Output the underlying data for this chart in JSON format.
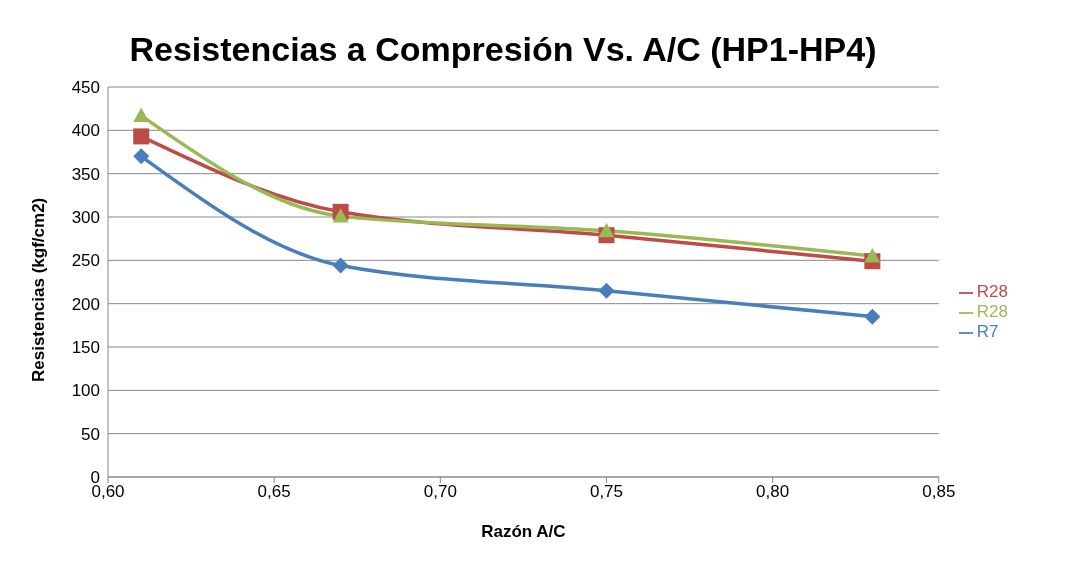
{
  "chart_data": {
    "type": "line",
    "title": "Resistencias a Compresión  Vs. A/C (HP1-HP4)",
    "xlabel": "Razón A/C",
    "ylabel": "Resistencias (kgf/cm2)",
    "x": [
      0.61,
      0.67,
      0.75,
      0.83
    ],
    "series": [
      {
        "name": "R7",
        "color": "#4a7ebb",
        "values": [
          370,
          244,
          215,
          185
        ],
        "marker": "diamond"
      },
      {
        "name": "R28",
        "color": "#be4b48",
        "values": [
          393,
          306,
          279,
          249
        ],
        "marker": "square"
      },
      {
        "name": "R28",
        "color": "#98b954",
        "values": [
          417,
          301,
          284,
          255
        ],
        "marker": "triangle"
      }
    ],
    "xlim": [
      0.6,
      0.85
    ],
    "xticks": [
      {
        "value": 0.6,
        "label": "0,60"
      },
      {
        "value": 0.65,
        "label": "0,65"
      },
      {
        "value": 0.7,
        "label": "0,70"
      },
      {
        "value": 0.75,
        "label": "0,75"
      },
      {
        "value": 0.8,
        "label": "0,80"
      },
      {
        "value": 0.85,
        "label": "0,85"
      }
    ],
    "ylim": [
      0,
      450
    ],
    "yticks": [
      0,
      50,
      100,
      150,
      200,
      250,
      300,
      350,
      400,
      450
    ],
    "grid": "y",
    "legend": "right",
    "line_style": "solid"
  }
}
